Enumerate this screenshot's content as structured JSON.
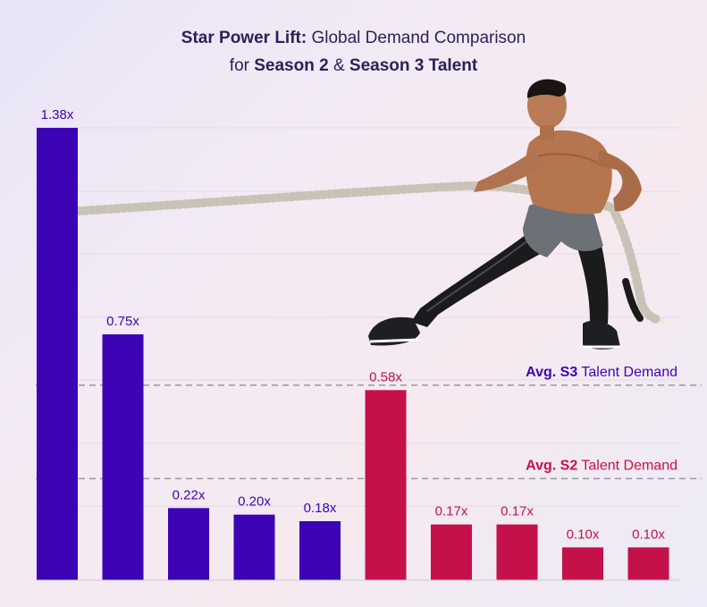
{
  "title": {
    "line1_bold": "Star Power Lift:",
    "line1_rest": " Global Demand Comparison",
    "line2_pre": "for ",
    "line2_s2": "Season 2",
    "line2_mid": " & ",
    "line2_s3": "Season 3 Talent"
  },
  "colors": {
    "season2": "#3c04b4",
    "season3": "#c5114a",
    "title": "#2a2255",
    "gridline": "#d8d2e6",
    "refline": "#9a97a6"
  },
  "image": {
    "description_icon": "athlete-with-battle-rope-image"
  },
  "chart_data": {
    "type": "bar",
    "title": "Star Power Lift: Global Demand Comparison for Season 2 & Season 3 Talent",
    "ylim": [
      0,
      1.38
    ],
    "grid": true,
    "series": [
      {
        "group": "Season 2",
        "values": [
          1.38,
          0.75,
          0.22,
          0.2,
          0.18
        ],
        "labels": [
          "1.38x",
          "0.75x",
          "0.22x",
          "0.20x",
          "0.18x"
        ]
      },
      {
        "group": "Season 3",
        "values": [
          0.58,
          0.17,
          0.17,
          0.1,
          0.1
        ],
        "labels": [
          "0.58x",
          "0.17x",
          "0.17x",
          "0.10x",
          "0.10x"
        ]
      }
    ],
    "reference_lines": [
      {
        "label_bold": "Avg. S3",
        "label_rest": " Talent Demand",
        "value": 0.595
      },
      {
        "label_bold": "Avg. S2",
        "label_rest": " Talent Demand",
        "value": 0.31
      }
    ]
  }
}
